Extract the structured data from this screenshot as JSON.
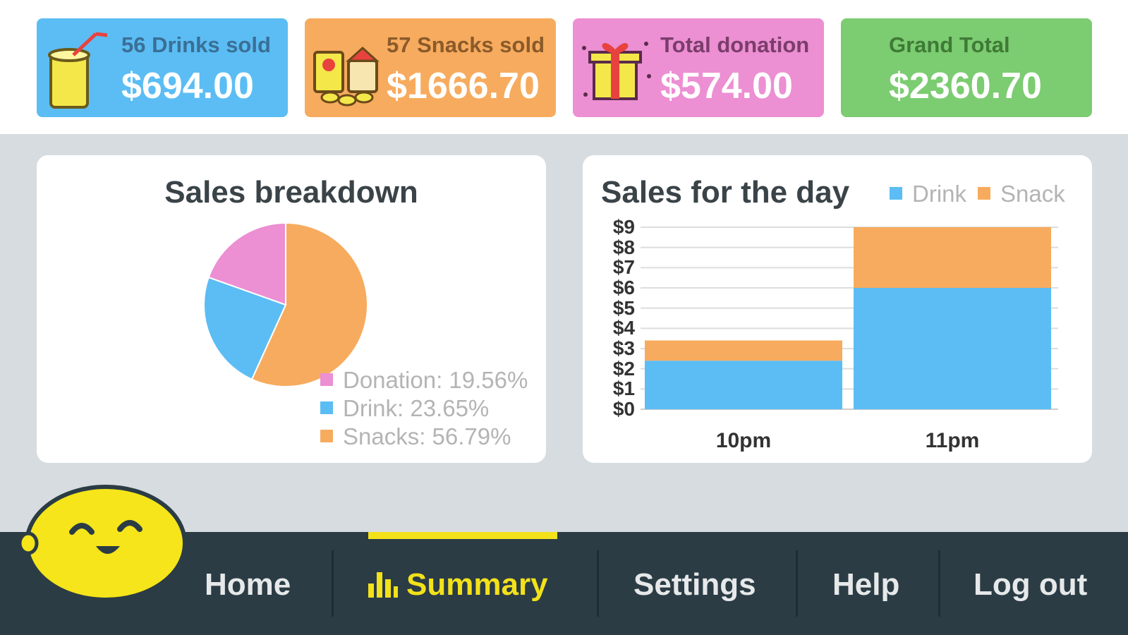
{
  "cards": [
    {
      "label": "56 Drinks sold",
      "amount": "$694.00",
      "color": "#5bbdf4",
      "icon": "drink-icon",
      "label_color": "#3a6f96"
    },
    {
      "label": "57 Snacks sold",
      "amount": "$1666.70",
      "color": "#f7ab5e",
      "icon": "snacks-icon",
      "label_color": "#8a5a2a"
    },
    {
      "label": "Total donation",
      "amount": "$574.00",
      "color": "#ec8fd3",
      "icon": "gift-icon",
      "label_color": "#7b3d6b"
    },
    {
      "label": "Grand Total",
      "amount": "$2360.70",
      "color": "#7ccc71",
      "icon": "",
      "label_color": "#3f7a36"
    }
  ],
  "pie_panel": {
    "title": "Sales breakdown",
    "legend": [
      {
        "label": "Donation: 19.56%",
        "color": "#ec8fd3"
      },
      {
        "label": "Drink: 23.65%",
        "color": "#5bbdf4"
      },
      {
        "label": "Snacks: 56.79%",
        "color": "#f7ab5e"
      }
    ]
  },
  "bar_panel": {
    "title": "Sales for the day",
    "legend": [
      {
        "label": "Drink",
        "color": "#5bbdf4"
      },
      {
        "label": "Snack",
        "color": "#f7ab5e"
      }
    ]
  },
  "chart_data": [
    {
      "type": "pie",
      "title": "Sales breakdown",
      "slices": [
        {
          "label": "Donation",
          "value": 19.56,
          "color": "#ec8fd3"
        },
        {
          "label": "Drink",
          "value": 23.65,
          "color": "#5bbdf4"
        },
        {
          "label": "Snacks",
          "value": 56.79,
          "color": "#f7ab5e"
        }
      ]
    },
    {
      "type": "bar",
      "stacked": true,
      "title": "Sales for the day",
      "categories": [
        "10pm",
        "11pm"
      ],
      "series": [
        {
          "name": "Drink",
          "values": [
            2.4,
            6
          ],
          "color": "#5bbdf4"
        },
        {
          "name": "Snack",
          "values": [
            1,
            3
          ],
          "color": "#f7ab5e"
        }
      ],
      "ylim": [
        0,
        9
      ],
      "yticks": [
        "$0",
        "$1",
        "$2",
        "$3",
        "$4",
        "$5",
        "$6",
        "$7",
        "$8",
        "$9"
      ],
      "grid": true,
      "legend": "top-right"
    }
  ],
  "nav": {
    "items": [
      {
        "label": "Home",
        "active": false
      },
      {
        "label": "Summary",
        "active": true
      },
      {
        "label": "Settings",
        "active": false
      },
      {
        "label": "Help",
        "active": false
      },
      {
        "label": "Log out",
        "active": false
      }
    ],
    "active_color": "#f3e11a"
  },
  "mascot": "lemon-mascot-icon"
}
